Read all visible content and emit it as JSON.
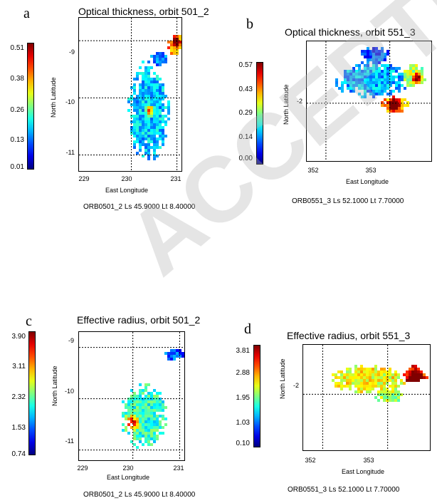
{
  "panels": [
    {
      "letter": "a",
      "title": "Optical thickness, orbit 501_2",
      "colorbar": [
        "0.51",
        "0.38",
        "0.26",
        "0.13",
        "0.01"
      ],
      "yticks": [
        "-9",
        "-10",
        "-11"
      ],
      "xticks": [
        "229",
        "230",
        "231"
      ],
      "xlabel": "East Longitude",
      "ylabel": "North Latitude",
      "caption": "ORB0501_2 Ls 45.9000 Lt 8.40000"
    },
    {
      "letter": "b",
      "title": "Optical thickness, orbit 551_3",
      "colorbar": [
        "0.57",
        "0.43",
        "0.29",
        "0.14",
        "0.00"
      ],
      "yticks": [
        "-2"
      ],
      "xticks": [
        "352",
        "353"
      ],
      "xlabel": "East Longitude",
      "ylabel": "North Latitude",
      "caption": "ORB0551_3 Ls 52.1000 Lt 7.70000"
    },
    {
      "letter": "c",
      "title": "Effective radius, orbit 501_2",
      "colorbar": [
        "3.90",
        "3.11",
        "2.32",
        "1.53",
        "0.74"
      ],
      "yticks": [
        "-9",
        "-10",
        "-11"
      ],
      "xticks": [
        "229",
        "230",
        "231"
      ],
      "xlabel": "East Longitude",
      "ylabel": "North Latitude",
      "caption": "ORB0501_2 Ls 45.9000 Lt 8.40000"
    },
    {
      "letter": "d",
      "title": "Effective radius, orbit 551_3",
      "colorbar": [
        "3.81",
        "2.88",
        "1.95",
        "1.03",
        "0.10"
      ],
      "yticks": [
        "-2"
      ],
      "xticks": [
        "352",
        "353"
      ],
      "xlabel": "East Longitude",
      "ylabel": "North Latitude",
      "caption": "ORB0551_3 Ls 52.1000 Lt 7.70000"
    }
  ],
  "watermark": "ACCEPTED MANUSCRIPT",
  "chart_data": [
    {
      "type": "heatmap",
      "title": "Optical thickness, orbit 501_2",
      "xlabel": "East Longitude",
      "ylabel": "North Latitude",
      "xlim": [
        229,
        231
      ],
      "ylim": [
        -11.2,
        -8.6
      ],
      "xticks": [
        229,
        230,
        231
      ],
      "yticks": [
        -9,
        -10,
        -11
      ],
      "colorbar_range": [
        0.01,
        0.51
      ],
      "colorbar_ticks": [
        0.01,
        0.13,
        0.26,
        0.38,
        0.51
      ],
      "grid": true
    },
    {
      "type": "heatmap",
      "title": "Optical thickness, orbit 551_3",
      "xlabel": "East Longitude",
      "ylabel": "North Latitude",
      "xlim": [
        351.8,
        353.6
      ],
      "ylim": [
        -2.7,
        -1.2
      ],
      "xticks": [
        352,
        353
      ],
      "yticks": [
        -2
      ],
      "colorbar_range": [
        0.0,
        0.57
      ],
      "colorbar_ticks": [
        0.0,
        0.14,
        0.29,
        0.43,
        0.57
      ],
      "grid": true
    },
    {
      "type": "heatmap",
      "title": "Effective radius, orbit 501_2",
      "xlabel": "East Longitude",
      "ylabel": "North Latitude",
      "xlim": [
        229,
        231
      ],
      "ylim": [
        -11.2,
        -8.6
      ],
      "xticks": [
        229,
        230,
        231
      ],
      "yticks": [
        -9,
        -10,
        -11
      ],
      "colorbar_range": [
        0.74,
        3.9
      ],
      "colorbar_ticks": [
        0.74,
        1.53,
        2.32,
        3.11,
        3.9
      ],
      "grid": true
    },
    {
      "type": "heatmap",
      "title": "Effective radius, orbit 551_3",
      "xlabel": "East Longitude",
      "ylabel": "North Latitude",
      "xlim": [
        351.8,
        353.6
      ],
      "ylim": [
        -2.7,
        -1.2
      ],
      "xticks": [
        352,
        353
      ],
      "yticks": [
        -2
      ],
      "colorbar_range": [
        0.1,
        3.81
      ],
      "colorbar_ticks": [
        0.1,
        1.03,
        1.95,
        2.88,
        3.81
      ],
      "grid": true
    }
  ]
}
